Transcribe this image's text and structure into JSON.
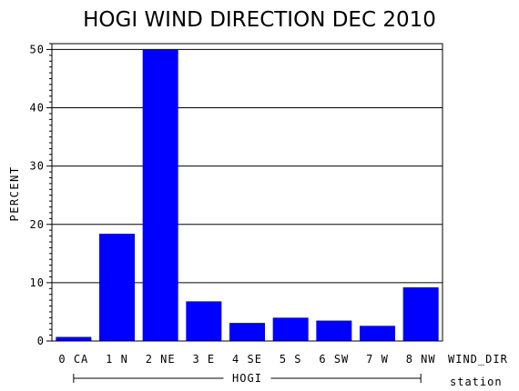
{
  "chart_data": {
    "type": "bar",
    "title": "HOGI WIND DIRECTION DEC 2010",
    "ylabel": "PERCENT",
    "xlabel": "WIND_DIR",
    "group_axis_label": "station",
    "group_label": "HOGI",
    "categories": [
      "0 CA",
      "1 N",
      "2 NE",
      "3 E",
      "4 SE",
      "5 S",
      "6 SW",
      "7 W",
      "8 NW"
    ],
    "values": [
      0.7,
      18.4,
      50.0,
      6.8,
      3.1,
      4.0,
      3.5,
      2.6,
      9.2
    ],
    "ylim": [
      0,
      51
    ],
    "yticks": [
      0,
      10,
      20,
      30,
      40,
      50
    ],
    "ytick_labels": [
      "0",
      "10",
      "20",
      "30",
      "40",
      "50"
    ],
    "grid": true,
    "bar_color": "#0000ff"
  }
}
